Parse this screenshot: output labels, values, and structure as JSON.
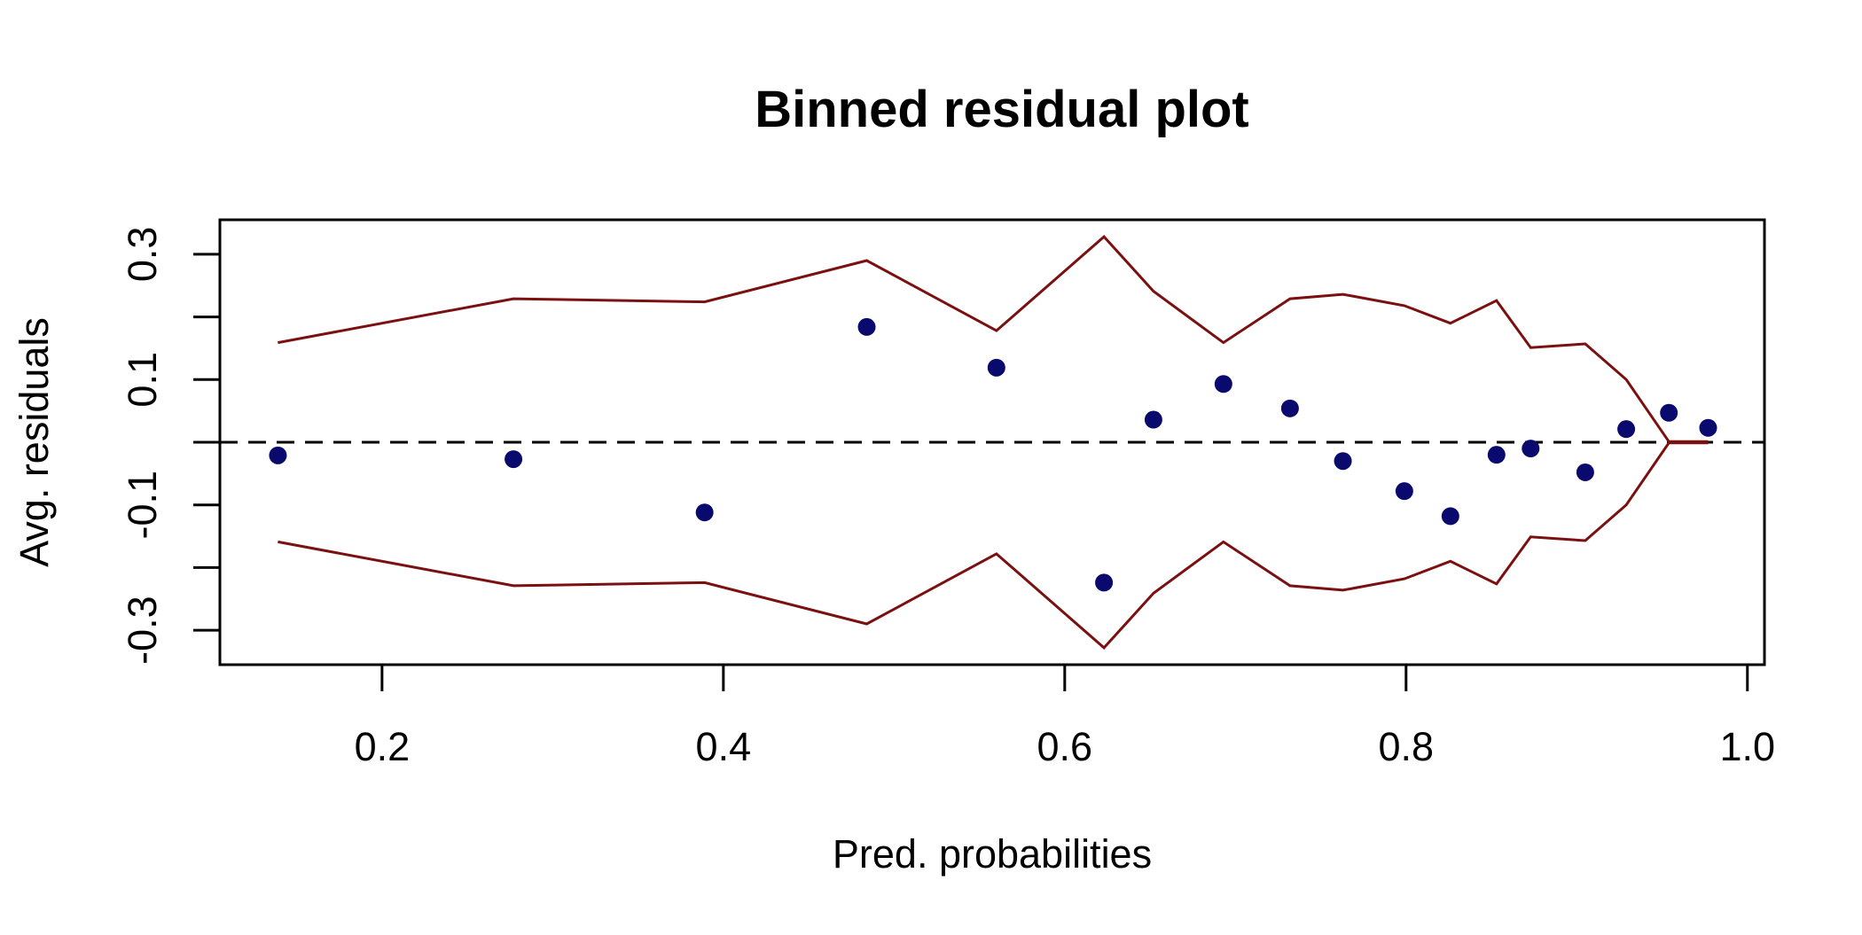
{
  "chart_data": {
    "type": "scatter",
    "title": "Binned residual plot",
    "xlabel": "Pred. probabilities",
    "ylabel": "Avg. residuals",
    "xlim": [
      0.105,
      1.01
    ],
    "ylim": [
      -0.355,
      0.355
    ],
    "x_ticks": [
      {
        "value": 0.2,
        "label": "0.2"
      },
      {
        "value": 0.4,
        "label": "0.4"
      },
      {
        "value": 0.6,
        "label": "0.6"
      },
      {
        "value": 0.8,
        "label": "0.8"
      },
      {
        "value": 1.0,
        "label": "1.0"
      }
    ],
    "y_ticks": [
      {
        "value": -0.3,
        "label": "-0.3"
      },
      {
        "value": -0.2,
        "label": ""
      },
      {
        "value": -0.1,
        "label": "-0.1"
      },
      {
        "value": 0.0,
        "label": ""
      },
      {
        "value": 0.1,
        "label": "0.1"
      },
      {
        "value": 0.2,
        "label": ""
      },
      {
        "value": 0.3,
        "label": "0.3"
      }
    ],
    "grid": false,
    "reference_line": {
      "y": 0,
      "style": "dashed"
    },
    "points": {
      "x": [
        0.139,
        0.277,
        0.389,
        0.484,
        0.56,
        0.623,
        0.652,
        0.693,
        0.732,
        0.763,
        0.799,
        0.826,
        0.853,
        0.873,
        0.905,
        0.929,
        0.954,
        0.977
      ],
      "y": [
        -0.021,
        -0.027,
        -0.112,
        0.184,
        0.119,
        -0.224,
        0.036,
        0.093,
        0.054,
        -0.03,
        -0.078,
        -0.118,
        -0.02,
        -0.01,
        -0.048,
        0.021,
        0.047,
        0.023
      ]
    },
    "bounds": {
      "x": [
        0.139,
        0.277,
        0.389,
        0.484,
        0.56,
        0.623,
        0.652,
        0.693,
        0.732,
        0.763,
        0.799,
        0.826,
        0.853,
        0.873,
        0.905,
        0.929,
        0.954,
        0.977
      ],
      "upper": [
        0.159,
        0.229,
        0.224,
        0.29,
        0.178,
        0.328,
        0.241,
        0.159,
        0.229,
        0.236,
        0.218,
        0.19,
        0.226,
        0.151,
        0.157,
        0.1,
        0.001,
        0.001
      ],
      "lower": [
        -0.159,
        -0.229,
        -0.224,
        -0.29,
        -0.178,
        -0.328,
        -0.241,
        -0.159,
        -0.229,
        -0.236,
        -0.218,
        -0.19,
        -0.226,
        -0.151,
        -0.157,
        -0.1,
        -0.001,
        -0.001
      ]
    },
    "colors": {
      "points": "#0a0a6e",
      "bounds": "#7a1010",
      "axes": "#000000"
    }
  }
}
